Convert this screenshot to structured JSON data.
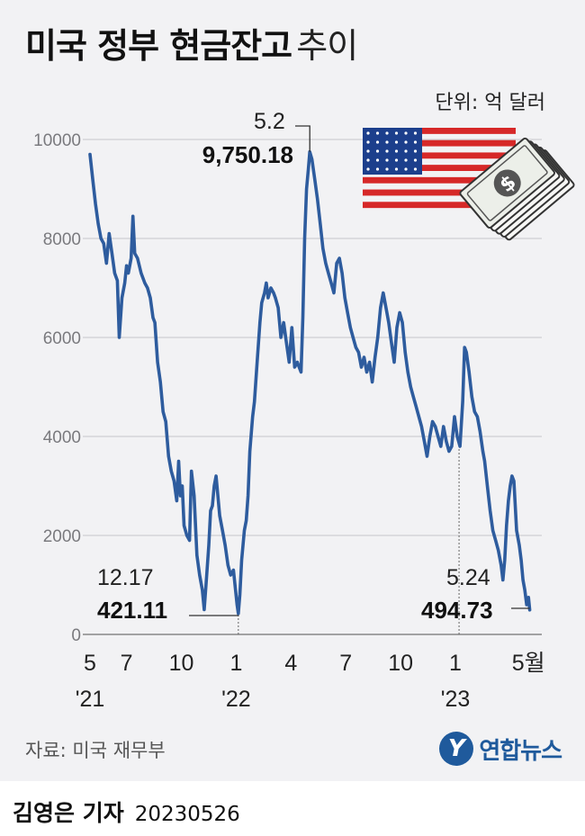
{
  "title": {
    "bold": "미국 정부 현금잔고",
    "light": "추이"
  },
  "unit_label": "단위: 억 달러",
  "source": "자료: 미국 재무부",
  "reporter": {
    "name": "김영은 기자",
    "date": "20230526"
  },
  "logo": {
    "text": "연합뉴스"
  },
  "colors": {
    "line": "#2e5c9e",
    "grid": "#c6c6ca",
    "background": "#f2f2f4",
    "axis_text": "#7a7a7e"
  },
  "chart_data": {
    "type": "line",
    "title": "미국 정부 현금잔고 추이",
    "ylabel": "단위: 억 달러",
    "ylim": [
      0,
      10000
    ],
    "yticks": [
      "0",
      "2000",
      "4000",
      "6000",
      "8000",
      "10000"
    ],
    "xticks": [
      {
        "label": "5",
        "month": 0
      },
      {
        "label": "7",
        "month": 2
      },
      {
        "label": "10",
        "month": 5
      },
      {
        "label": "1",
        "month": 8
      },
      {
        "label": "4",
        "month": 11
      },
      {
        "label": "7",
        "month": 14
      },
      {
        "label": "10",
        "month": 17
      },
      {
        "label": "1",
        "month": 20
      },
      {
        "label": "5월",
        "month": 24
      }
    ],
    "year_labels": [
      {
        "label": "'21",
        "month": 0
      },
      {
        "label": "'22",
        "month": 8
      },
      {
        "label": "'23",
        "month": 20
      }
    ],
    "series": [
      {
        "points": [
          [
            0.0,
            9700
          ],
          [
            0.15,
            9200
          ],
          [
            0.3,
            8700
          ],
          [
            0.45,
            8300
          ],
          [
            0.6,
            8000
          ],
          [
            0.75,
            7900
          ],
          [
            0.9,
            7500
          ],
          [
            1.05,
            8100
          ],
          [
            1.2,
            7700
          ],
          [
            1.35,
            7300
          ],
          [
            1.5,
            7150
          ],
          [
            1.6,
            6000
          ],
          [
            1.75,
            6800
          ],
          [
            1.9,
            7100
          ],
          [
            2.0,
            7450
          ],
          [
            2.1,
            7300
          ],
          [
            2.25,
            7600
          ],
          [
            2.35,
            8450
          ],
          [
            2.45,
            7700
          ],
          [
            2.6,
            7600
          ],
          [
            2.8,
            7300
          ],
          [
            3.0,
            7100
          ],
          [
            3.15,
            7000
          ],
          [
            3.3,
            6800
          ],
          [
            3.45,
            6400
          ],
          [
            3.55,
            6300
          ],
          [
            3.7,
            5500
          ],
          [
            3.85,
            5100
          ],
          [
            4.0,
            4500
          ],
          [
            4.15,
            4300
          ],
          [
            4.3,
            3600
          ],
          [
            4.45,
            3300
          ],
          [
            4.6,
            3100
          ],
          [
            4.75,
            2700
          ],
          [
            4.85,
            3500
          ],
          [
            4.95,
            2800
          ],
          [
            5.05,
            3000
          ],
          [
            5.15,
            2200
          ],
          [
            5.3,
            2000
          ],
          [
            5.45,
            1900
          ],
          [
            5.55,
            3300
          ],
          [
            5.7,
            2800
          ],
          [
            5.85,
            1600
          ],
          [
            6.0,
            1200
          ],
          [
            6.15,
            900
          ],
          [
            6.25,
            500
          ],
          [
            6.35,
            1000
          ],
          [
            6.5,
            1800
          ],
          [
            6.6,
            2500
          ],
          [
            6.7,
            2600
          ],
          [
            6.8,
            3000
          ],
          [
            6.9,
            3200
          ],
          [
            7.0,
            2800
          ],
          [
            7.1,
            2400
          ],
          [
            7.25,
            2100
          ],
          [
            7.4,
            1800
          ],
          [
            7.55,
            1400
          ],
          [
            7.7,
            1200
          ],
          [
            7.85,
            1300
          ],
          [
            7.95,
            950
          ],
          [
            8.05,
            600
          ],
          [
            8.12,
            421.11
          ],
          [
            8.2,
            800
          ],
          [
            8.3,
            1500
          ],
          [
            8.45,
            2100
          ],
          [
            8.55,
            2300
          ],
          [
            8.65,
            2800
          ],
          [
            8.75,
            3700
          ],
          [
            8.9,
            4400
          ],
          [
            9.0,
            4700
          ],
          [
            9.15,
            5500
          ],
          [
            9.3,
            6300
          ],
          [
            9.4,
            6700
          ],
          [
            9.55,
            6900
          ],
          [
            9.65,
            7100
          ],
          [
            9.75,
            6800
          ],
          [
            9.9,
            7000
          ],
          [
            10.05,
            6900
          ],
          [
            10.15,
            6800
          ],
          [
            10.3,
            6600
          ],
          [
            10.45,
            6000
          ],
          [
            10.6,
            6300
          ],
          [
            10.75,
            5900
          ],
          [
            10.9,
            5500
          ],
          [
            11.05,
            6200
          ],
          [
            11.2,
            5400
          ],
          [
            11.35,
            5500
          ],
          [
            11.45,
            5400
          ],
          [
            11.55,
            5300
          ],
          [
            11.65,
            6400
          ],
          [
            11.75,
            8000
          ],
          [
            11.85,
            9000
          ],
          [
            11.95,
            9400
          ],
          [
            12.03,
            9750.18
          ],
          [
            12.15,
            9600
          ],
          [
            12.3,
            9200
          ],
          [
            12.45,
            8800
          ],
          [
            12.6,
            8300
          ],
          [
            12.75,
            7800
          ],
          [
            12.9,
            7500
          ],
          [
            13.05,
            7300
          ],
          [
            13.2,
            7100
          ],
          [
            13.35,
            6900
          ],
          [
            13.5,
            7500
          ],
          [
            13.65,
            7600
          ],
          [
            13.8,
            7300
          ],
          [
            13.95,
            6800
          ],
          [
            14.1,
            6500
          ],
          [
            14.25,
            6200
          ],
          [
            14.4,
            6000
          ],
          [
            14.55,
            5800
          ],
          [
            14.7,
            5700
          ],
          [
            14.85,
            5400
          ],
          [
            15.0,
            5600
          ],
          [
            15.15,
            5300
          ],
          [
            15.3,
            5500
          ],
          [
            15.45,
            5100
          ],
          [
            15.6,
            5600
          ],
          [
            15.75,
            6000
          ],
          [
            15.9,
            6600
          ],
          [
            16.05,
            6900
          ],
          [
            16.2,
            6600
          ],
          [
            16.35,
            6300
          ],
          [
            16.5,
            5900
          ],
          [
            16.65,
            5500
          ],
          [
            16.8,
            6200
          ],
          [
            16.95,
            6500
          ],
          [
            17.1,
            6300
          ],
          [
            17.25,
            5700
          ],
          [
            17.4,
            5300
          ],
          [
            17.55,
            5000
          ],
          [
            17.7,
            4800
          ],
          [
            17.85,
            4600
          ],
          [
            18.0,
            4400
          ],
          [
            18.15,
            4200
          ],
          [
            18.3,
            3900
          ],
          [
            18.45,
            3600
          ],
          [
            18.6,
            4000
          ],
          [
            18.75,
            4300
          ],
          [
            18.9,
            4200
          ],
          [
            19.05,
            4000
          ],
          [
            19.2,
            3800
          ],
          [
            19.35,
            4200
          ],
          [
            19.5,
            3900
          ],
          [
            19.65,
            3700
          ],
          [
            19.8,
            3800
          ],
          [
            19.95,
            4400
          ],
          [
            20.1,
            4000
          ],
          [
            20.25,
            3800
          ],
          [
            20.4,
            4700
          ],
          [
            20.5,
            5800
          ],
          [
            20.6,
            5700
          ],
          [
            20.75,
            5300
          ],
          [
            20.9,
            4800
          ],
          [
            21.05,
            4500
          ],
          [
            21.2,
            4400
          ],
          [
            21.35,
            4100
          ],
          [
            21.5,
            3700
          ],
          [
            21.6,
            3500
          ],
          [
            21.75,
            3000
          ],
          [
            21.9,
            2500
          ],
          [
            22.05,
            2100
          ],
          [
            22.2,
            1900
          ],
          [
            22.35,
            1700
          ],
          [
            22.5,
            1400
          ],
          [
            22.6,
            1100
          ],
          [
            22.7,
            1500
          ],
          [
            22.8,
            2200
          ],
          [
            22.9,
            2700
          ],
          [
            23.0,
            3000
          ],
          [
            23.1,
            3200
          ],
          [
            23.2,
            3100
          ],
          [
            23.35,
            2100
          ],
          [
            23.5,
            1800
          ],
          [
            23.6,
            1500
          ],
          [
            23.7,
            1100
          ],
          [
            23.8,
            900
          ],
          [
            23.9,
            600
          ],
          [
            24.0,
            750
          ],
          [
            24.07,
            494.73
          ]
        ]
      }
    ],
    "annotations": [
      {
        "date": "12.17",
        "value": "421.11"
      },
      {
        "date": "5.2",
        "value": "9,750.18"
      },
      {
        "date": "5.24",
        "value": "494.73"
      }
    ]
  }
}
